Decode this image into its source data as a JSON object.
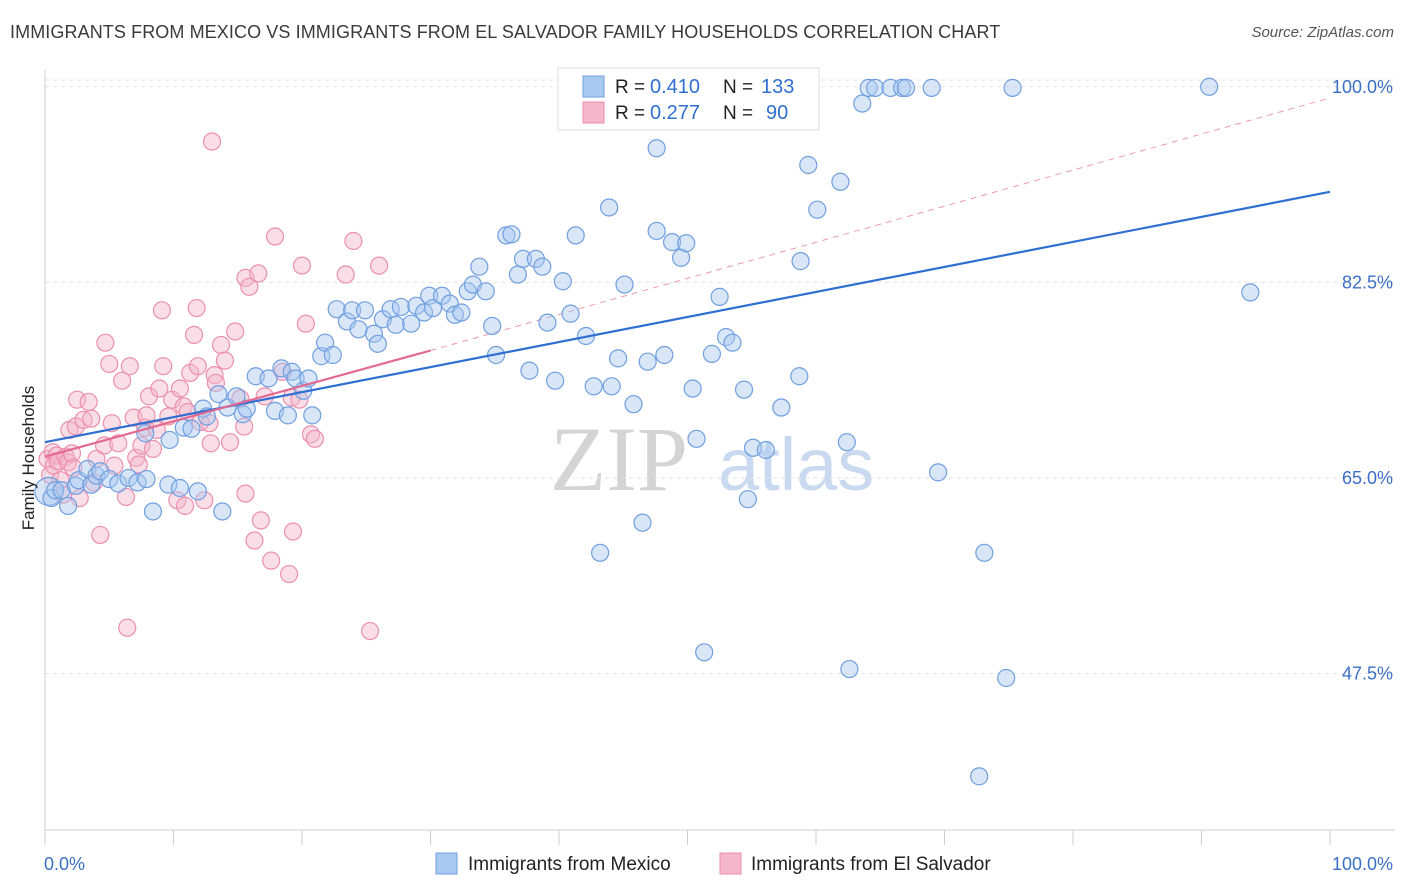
{
  "title": "IMMIGRANTS FROM MEXICO VS IMMIGRANTS FROM EL SALVADOR FAMILY HOUSEHOLDS CORRELATION CHART",
  "source": "Source: ZipAtlas.com",
  "watermark": {
    "zip": "ZIP",
    "atlas": "atlas"
  },
  "legend": {
    "r_label": "R = ",
    "n_label": "N = ",
    "series": [
      {
        "r": "0.410",
        "n": "133"
      },
      {
        "r": "0.277",
        "n": "90"
      }
    ]
  },
  "colors": {
    "mexico_fill": "#a9c8f0",
    "mexico_stroke": "#6f9fe0",
    "mexico_line": "#2f6fd1",
    "salvador_fill": "#f4b6ca",
    "salvador_stroke": "#ec8fae",
    "salvador_line": "#e26a92",
    "tick": "#3b6fc7"
  },
  "chart_data": {
    "type": "scatter",
    "title": "IMMIGRANTS FROM MEXICO VS IMMIGRANTS FROM EL SALVADOR FAMILY HOUSEHOLDS CORRELATION CHART",
    "xlabel": "",
    "ylabel": "Family Households",
    "xlim": [
      0,
      100
    ],
    "ylim": [
      33.5,
      101.5
    ],
    "x_tick_labels": [
      "0.0%",
      "100.0%"
    ],
    "y_ticks": [
      47.5,
      65.0,
      82.5,
      100.0
    ],
    "y_tick_labels": [
      "47.5%",
      "65.0%",
      "82.5%",
      "100.0%"
    ],
    "grid": true,
    "series": [
      {
        "name": "Immigrants from Mexico",
        "r": 0.41,
        "n": 133,
        "trend": {
          "x": [
            0,
            100
          ],
          "y": [
            68.2,
            90.6
          ]
        },
        "points": [
          [
            0.3,
            63.8
          ],
          [
            0.5,
            63.2
          ],
          [
            0.8,
            63.9
          ],
          [
            1.3,
            63.9
          ],
          [
            1.8,
            62.5
          ],
          [
            2.4,
            64.3
          ],
          [
            2.6,
            64.8
          ],
          [
            3.3,
            65.8
          ],
          [
            3.6,
            64.4
          ],
          [
            4.0,
            65.2
          ],
          [
            4.3,
            65.6
          ],
          [
            5.0,
            64.9
          ],
          [
            5.7,
            64.5
          ],
          [
            6.5,
            65.0
          ],
          [
            7.2,
            64.6
          ],
          [
            7.8,
            69.0
          ],
          [
            7.9,
            64.9
          ],
          [
            8.4,
            62.0
          ],
          [
            9.6,
            64.4
          ],
          [
            9.7,
            68.4
          ],
          [
            10.5,
            64.1
          ],
          [
            10.8,
            69.5
          ],
          [
            11.4,
            69.4
          ],
          [
            11.9,
            63.8
          ],
          [
            12.3,
            71.2
          ],
          [
            12.6,
            70.5
          ],
          [
            13.5,
            72.5
          ],
          [
            13.8,
            62.0
          ],
          [
            14.2,
            71.3
          ],
          [
            14.9,
            72.3
          ],
          [
            15.4,
            70.7
          ],
          [
            15.7,
            71.2
          ],
          [
            16.4,
            74.1
          ],
          [
            17.4,
            73.9
          ],
          [
            17.9,
            71.0
          ],
          [
            18.4,
            74.8
          ],
          [
            18.9,
            70.6
          ],
          [
            19.2,
            74.5
          ],
          [
            19.5,
            73.9
          ],
          [
            20.1,
            72.8
          ],
          [
            20.5,
            73.9
          ],
          [
            20.8,
            70.6
          ],
          [
            21.5,
            75.9
          ],
          [
            21.8,
            77.1
          ],
          [
            22.4,
            76.0
          ],
          [
            22.7,
            80.1
          ],
          [
            23.5,
            79.0
          ],
          [
            23.9,
            80.0
          ],
          [
            24.4,
            78.3
          ],
          [
            24.9,
            80.0
          ],
          [
            25.6,
            77.9
          ],
          [
            25.9,
            77.0
          ],
          [
            26.3,
            79.2
          ],
          [
            26.9,
            80.1
          ],
          [
            27.3,
            78.7
          ],
          [
            27.7,
            80.3
          ],
          [
            28.5,
            78.8
          ],
          [
            28.9,
            80.4
          ],
          [
            29.5,
            79.8
          ],
          [
            29.9,
            81.3
          ],
          [
            30.2,
            80.2
          ],
          [
            30.9,
            81.3
          ],
          [
            31.5,
            80.6
          ],
          [
            31.9,
            79.6
          ],
          [
            32.4,
            79.8
          ],
          [
            32.9,
            81.7
          ],
          [
            33.3,
            82.3
          ],
          [
            33.8,
            83.9
          ],
          [
            34.3,
            81.7
          ],
          [
            34.8,
            78.6
          ],
          [
            35.1,
            76.0
          ],
          [
            35.9,
            86.7
          ],
          [
            36.3,
            86.8
          ],
          [
            36.8,
            83.2
          ],
          [
            37.2,
            84.6
          ],
          [
            37.7,
            74.6
          ],
          [
            38.2,
            84.6
          ],
          [
            38.7,
            83.9
          ],
          [
            39.1,
            78.9
          ],
          [
            39.7,
            73.7
          ],
          [
            40.3,
            82.6
          ],
          [
            40.9,
            79.7
          ],
          [
            41.3,
            86.7
          ],
          [
            42.1,
            77.7
          ],
          [
            42.7,
            73.2
          ],
          [
            43.2,
            58.3
          ],
          [
            43.9,
            89.2
          ],
          [
            44.1,
            73.2
          ],
          [
            44.6,
            75.7
          ],
          [
            45.1,
            82.3
          ],
          [
            45.8,
            71.6
          ],
          [
            46.5,
            61.0
          ],
          [
            46.9,
            75.4
          ],
          [
            47.6,
            94.5
          ],
          [
            47.6,
            87.1
          ],
          [
            48.2,
            76.0
          ],
          [
            48.8,
            86.1
          ],
          [
            49.5,
            84.7
          ],
          [
            49.9,
            86.0
          ],
          [
            50.4,
            73.0
          ],
          [
            50.7,
            68.5
          ],
          [
            51.3,
            49.4
          ],
          [
            51.9,
            76.1
          ],
          [
            52.5,
            81.2
          ],
          [
            53.0,
            77.6
          ],
          [
            53.5,
            77.1
          ],
          [
            54.4,
            72.9
          ],
          [
            54.7,
            63.1
          ],
          [
            55.1,
            67.7
          ],
          [
            56.1,
            67.5
          ],
          [
            56.9,
            100.0
          ],
          [
            57.3,
            71.3
          ],
          [
            57.6,
            100.0
          ],
          [
            58.0,
            99.6
          ],
          [
            58.7,
            74.1
          ],
          [
            58.8,
            84.4
          ],
          [
            59.4,
            93.0
          ],
          [
            60.1,
            89.0
          ],
          [
            61.9,
            91.5
          ],
          [
            62.4,
            68.2
          ],
          [
            62.6,
            47.9
          ],
          [
            63.6,
            98.5
          ],
          [
            64.1,
            99.9
          ],
          [
            64.6,
            99.9
          ],
          [
            65.8,
            99.9
          ],
          [
            66.7,
            99.9
          ],
          [
            67.0,
            99.9
          ],
          [
            69.0,
            99.9
          ],
          [
            69.5,
            65.5
          ],
          [
            73.1,
            58.3
          ],
          [
            74.8,
            47.1
          ],
          [
            75.3,
            99.9
          ],
          [
            90.6,
            100.0
          ],
          [
            93.8,
            81.6
          ],
          [
            72.7,
            38.3
          ]
        ]
      },
      {
        "name": "Immigrants from El Salvador",
        "r": 0.277,
        "n": 90,
        "trend": {
          "x": [
            0,
            30
          ],
          "y": [
            66.9,
            76.4
          ]
        },
        "points": [
          [
            0.2,
            66.7
          ],
          [
            0.4,
            65.3
          ],
          [
            0.6,
            67.3
          ],
          [
            0.7,
            66.1
          ],
          [
            0.9,
            67.0
          ],
          [
            1.0,
            66.5
          ],
          [
            1.2,
            64.8
          ],
          [
            1.4,
            63.5
          ],
          [
            1.6,
            66.9
          ],
          [
            1.8,
            66.4
          ],
          [
            1.9,
            69.3
          ],
          [
            2.1,
            67.2
          ],
          [
            2.2,
            65.9
          ],
          [
            2.4,
            69.6
          ],
          [
            2.5,
            72.0
          ],
          [
            2.7,
            63.2
          ],
          [
            3.0,
            70.2
          ],
          [
            3.4,
            71.8
          ],
          [
            3.6,
            70.3
          ],
          [
            3.8,
            64.6
          ],
          [
            4.0,
            66.7
          ],
          [
            4.3,
            59.9
          ],
          [
            4.6,
            67.9
          ],
          [
            4.7,
            77.1
          ],
          [
            5.0,
            75.2
          ],
          [
            5.2,
            69.9
          ],
          [
            5.4,
            66.1
          ],
          [
            5.7,
            68.1
          ],
          [
            6.0,
            73.7
          ],
          [
            6.3,
            63.3
          ],
          [
            6.4,
            51.6
          ],
          [
            6.6,
            75.0
          ],
          [
            6.9,
            70.4
          ],
          [
            7.1,
            66.8
          ],
          [
            7.3,
            66.2
          ],
          [
            7.5,
            67.9
          ],
          [
            7.8,
            69.5
          ],
          [
            7.9,
            70.6
          ],
          [
            8.1,
            72.3
          ],
          [
            8.4,
            67.6
          ],
          [
            8.7,
            69.3
          ],
          [
            8.9,
            73.0
          ],
          [
            9.1,
            80.0
          ],
          [
            9.2,
            75.0
          ],
          [
            9.6,
            70.5
          ],
          [
            9.9,
            72.0
          ],
          [
            10.3,
            63.0
          ],
          [
            10.5,
            73.0
          ],
          [
            10.8,
            71.4
          ],
          [
            10.9,
            62.5
          ],
          [
            11.1,
            70.9
          ],
          [
            11.3,
            74.4
          ],
          [
            11.6,
            77.8
          ],
          [
            11.8,
            80.2
          ],
          [
            11.9,
            75.0
          ],
          [
            12.1,
            70.0
          ],
          [
            12.4,
            63.0
          ],
          [
            12.8,
            69.9
          ],
          [
            12.9,
            68.1
          ],
          [
            13.0,
            95.1
          ],
          [
            13.2,
            74.2
          ],
          [
            13.3,
            73.5
          ],
          [
            13.7,
            76.9
          ],
          [
            14.0,
            75.5
          ],
          [
            14.4,
            68.2
          ],
          [
            14.8,
            78.1
          ],
          [
            15.2,
            72.1
          ],
          [
            15.5,
            69.6
          ],
          [
            15.6,
            63.6
          ],
          [
            15.6,
            82.9
          ],
          [
            15.9,
            82.1
          ],
          [
            16.3,
            59.4
          ],
          [
            16.6,
            83.3
          ],
          [
            16.8,
            61.2
          ],
          [
            17.1,
            72.3
          ],
          [
            17.6,
            57.6
          ],
          [
            17.9,
            86.6
          ],
          [
            18.5,
            74.5
          ],
          [
            19.0,
            56.4
          ],
          [
            19.2,
            72.2
          ],
          [
            19.3,
            60.2
          ],
          [
            19.8,
            72.0
          ],
          [
            20.0,
            84.0
          ],
          [
            20.3,
            78.8
          ],
          [
            20.7,
            68.9
          ],
          [
            21.0,
            68.5
          ],
          [
            23.4,
            83.2
          ],
          [
            24.0,
            86.2
          ],
          [
            25.3,
            51.3
          ],
          [
            26.0,
            84.0
          ]
        ]
      }
    ]
  },
  "bottom_legend": [
    "Immigrants from Mexico",
    "Immigrants from El Salvador"
  ]
}
